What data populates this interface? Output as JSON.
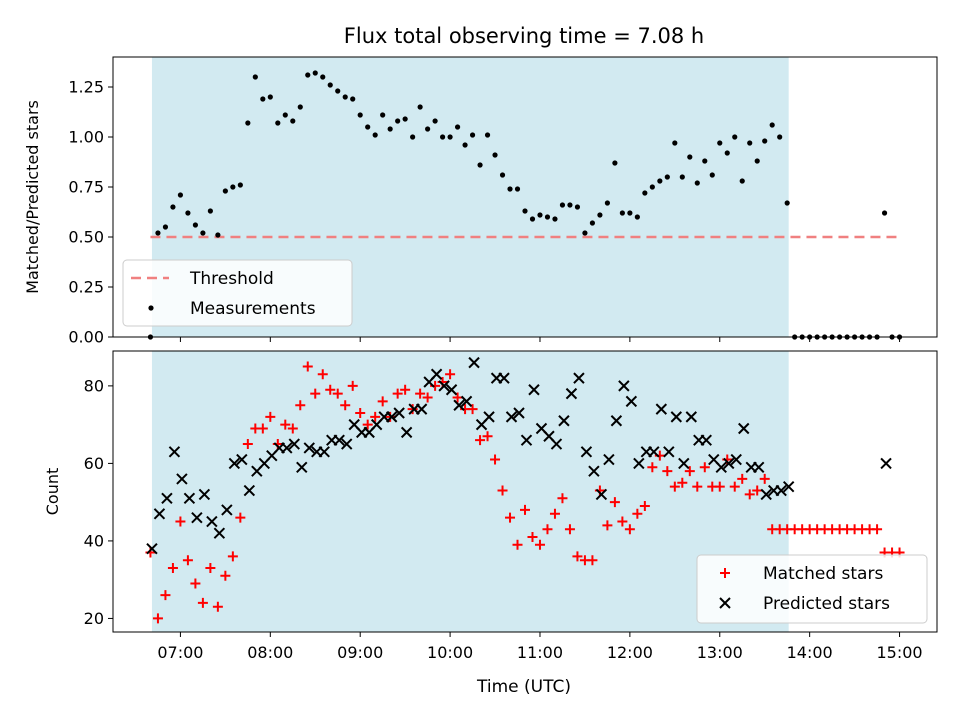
{
  "chart_data": [
    {
      "type": "scatter",
      "title": "Flux total observing time = 7.08 h",
      "xlabel": "",
      "ylabel": "Matched/Predicted stars",
      "xlim": [
        "06:15",
        "15:25"
      ],
      "ylim": [
        0,
        1.4
      ],
      "xticks": [
        "07:00",
        "08:00",
        "09:00",
        "10:00",
        "11:00",
        "12:00",
        "13:00",
        "14:00",
        "15:00"
      ],
      "yticks": [
        "0.00",
        "0.25",
        "0.50",
        "0.75",
        "1.00",
        "1.25"
      ],
      "observing_window": [
        "06:41",
        "13:46"
      ],
      "threshold": {
        "name": "Threshold",
        "value": 0.5,
        "x": [
          "06:40",
          "15:00"
        ],
        "color": "#f08080"
      },
      "legend": {
        "position": "lower-left",
        "entries": [
          "Threshold",
          "Measurements"
        ]
      },
      "series": [
        {
          "name": "Measurements",
          "color": "#000000",
          "marker": "dot",
          "x": [
            "06:40",
            "06:45",
            "06:50",
            "06:55",
            "07:00",
            "07:05",
            "07:10",
            "07:15",
            "07:20",
            "07:25",
            "07:30",
            "07:35",
            "07:40",
            "07:45",
            "07:50",
            "07:55",
            "08:00",
            "08:05",
            "08:10",
            "08:15",
            "08:20",
            "08:25",
            "08:30",
            "08:35",
            "08:40",
            "08:45",
            "08:50",
            "08:55",
            "09:00",
            "09:05",
            "09:10",
            "09:15",
            "09:20",
            "09:25",
            "09:30",
            "09:35",
            "09:40",
            "09:45",
            "09:50",
            "09:55",
            "10:00",
            "10:05",
            "10:10",
            "10:15",
            "10:20",
            "10:25",
            "10:30",
            "10:35",
            "10:40",
            "10:45",
            "10:50",
            "10:55",
            "11:00",
            "11:05",
            "11:10",
            "11:15",
            "11:20",
            "11:25",
            "11:30",
            "11:35",
            "11:40",
            "11:45",
            "11:50",
            "11:55",
            "12:00",
            "12:05",
            "12:10",
            "12:15",
            "12:20",
            "12:25",
            "12:30",
            "12:35",
            "12:40",
            "12:45",
            "12:50",
            "12:55",
            "13:00",
            "13:05",
            "13:10",
            "13:15",
            "13:20",
            "13:25",
            "13:30",
            "13:35",
            "13:40",
            "13:45",
            "13:50",
            "13:55",
            "14:00",
            "14:05",
            "14:10",
            "14:15",
            "14:20",
            "14:25",
            "14:30",
            "14:35",
            "14:40",
            "14:45",
            "14:50",
            "14:55",
            "15:00"
          ],
          "y": [
            0.0,
            0.52,
            0.55,
            0.65,
            0.71,
            0.62,
            0.56,
            0.52,
            0.63,
            0.51,
            0.73,
            0.75,
            0.76,
            1.07,
            1.3,
            1.19,
            1.2,
            1.07,
            1.11,
            1.08,
            1.15,
            1.31,
            1.32,
            1.3,
            1.26,
            1.23,
            1.2,
            1.19,
            1.11,
            1.05,
            1.01,
            1.11,
            1.04,
            1.08,
            1.09,
            1.0,
            1.15,
            1.04,
            1.08,
            1.0,
            1.0,
            1.05,
            0.96,
            1.01,
            0.86,
            1.01,
            0.91,
            0.81,
            0.74,
            0.74,
            0.63,
            0.59,
            0.61,
            0.6,
            0.59,
            0.66,
            0.66,
            0.65,
            0.52,
            0.57,
            0.61,
            0.67,
            0.87,
            0.62,
            0.62,
            0.6,
            0.72,
            0.75,
            0.78,
            0.8,
            0.97,
            0.8,
            0.9,
            0.77,
            0.88,
            0.81,
            0.97,
            0.92,
            1.0,
            0.78,
            0.97,
            0.88,
            0.98,
            1.06,
            1.0,
            0.67,
            0.0,
            0.0,
            0.0,
            0.0,
            0.0,
            0.0,
            0.0,
            0.0,
            0.0,
            0.0,
            0.0,
            0.0,
            0.62,
            0.0,
            0.0
          ]
        }
      ]
    },
    {
      "type": "scatter",
      "title": "",
      "xlabel": "Time (UTC)",
      "ylabel": "Count",
      "xlim": [
        "06:15",
        "15:25"
      ],
      "ylim": [
        16.5,
        89
      ],
      "xticks": [
        "07:00",
        "08:00",
        "09:00",
        "10:00",
        "11:00",
        "12:00",
        "13:00",
        "14:00",
        "15:00"
      ],
      "yticks": [
        "20",
        "40",
        "60",
        "80"
      ],
      "observing_window": [
        "06:41",
        "13:46"
      ],
      "legend": {
        "position": "lower-right",
        "entries": [
          "Matched stars",
          "Predicted stars"
        ]
      },
      "series": [
        {
          "name": "Matched stars",
          "color": "#ff0000",
          "marker": "plus",
          "x": [
            "06:40",
            "06:45",
            "06:50",
            "06:55",
            "07:00",
            "07:05",
            "07:10",
            "07:15",
            "07:20",
            "07:25",
            "07:30",
            "07:35",
            "07:40",
            "07:45",
            "07:50",
            "07:55",
            "08:00",
            "08:05",
            "08:10",
            "08:15",
            "08:20",
            "08:25",
            "08:30",
            "08:35",
            "08:40",
            "08:45",
            "08:50",
            "08:55",
            "09:00",
            "09:05",
            "09:10",
            "09:15",
            "09:20",
            "09:25",
            "09:30",
            "09:35",
            "09:40",
            "09:45",
            "09:50",
            "09:55",
            "10:00",
            "10:05",
            "10:10",
            "10:15",
            "10:20",
            "10:25",
            "10:30",
            "10:35",
            "10:40",
            "10:45",
            "10:50",
            "10:55",
            "11:00",
            "11:05",
            "11:10",
            "11:15",
            "11:20",
            "11:25",
            "11:30",
            "11:35",
            "11:40",
            "11:45",
            "11:50",
            "11:55",
            "12:00",
            "12:05",
            "12:10",
            "12:15",
            "12:20",
            "12:25",
            "12:30",
            "12:35",
            "12:40",
            "12:45",
            "12:50",
            "12:55",
            "13:00",
            "13:05",
            "13:10",
            "13:15",
            "13:20",
            "13:25",
            "13:30",
            "13:35",
            "13:40",
            "13:45",
            "13:50",
            "13:55",
            "14:00",
            "14:05",
            "14:10",
            "14:15",
            "14:20",
            "14:25",
            "14:30",
            "14:35",
            "14:40",
            "14:45",
            "14:50",
            "14:55",
            "15:00"
          ],
          "y": [
            37,
            20,
            26,
            33,
            45,
            35,
            29,
            24,
            33,
            23,
            31,
            36,
            46,
            65,
            69,
            69,
            72,
            65,
            70,
            69,
            75,
            85,
            78,
            83,
            79,
            78,
            75,
            80,
            73,
            70,
            72,
            76,
            72,
            78,
            79,
            74,
            78,
            77,
            80,
            81,
            83,
            77,
            74,
            74,
            66,
            67,
            61,
            53,
            46,
            39,
            48,
            41,
            39,
            43,
            47,
            51,
            43,
            36,
            35,
            35,
            53,
            44,
            50,
            45,
            43,
            47,
            49,
            59,
            62,
            58,
            54,
            55,
            58,
            54,
            59,
            54,
            54,
            61,
            54,
            56,
            52,
            53,
            56,
            43,
            43,
            43,
            43,
            43,
            43,
            43,
            43,
            43,
            43,
            43,
            43,
            43,
            43,
            43,
            37,
            37,
            37
          ]
        },
        {
          "name": "Predicted stars",
          "color": "#000000",
          "marker": "x",
          "x": [
            "06:41",
            "06:46",
            "06:51",
            "06:56",
            "07:01",
            "07:06",
            "07:11",
            "07:16",
            "07:21",
            "07:26",
            "07:31",
            "07:36",
            "07:41",
            "07:46",
            "07:51",
            "07:56",
            "08:01",
            "08:06",
            "08:11",
            "08:16",
            "08:21",
            "08:26",
            "08:31",
            "08:36",
            "08:41",
            "08:46",
            "08:51",
            "08:56",
            "09:01",
            "09:06",
            "09:11",
            "09:16",
            "09:21",
            "09:26",
            "09:31",
            "09:36",
            "09:41",
            "09:46",
            "09:51",
            "09:56",
            "10:01",
            "10:06",
            "10:11",
            "10:16",
            "10:21",
            "10:26",
            "10:31",
            "10:36",
            "10:41",
            "10:46",
            "10:51",
            "10:56",
            "11:01",
            "11:06",
            "11:11",
            "11:16",
            "11:21",
            "11:26",
            "11:31",
            "11:36",
            "11:41",
            "11:46",
            "11:51",
            "11:56",
            "12:01",
            "12:06",
            "12:11",
            "12:16",
            "12:21",
            "12:26",
            "12:31",
            "12:36",
            "12:41",
            "12:46",
            "12:51",
            "12:56",
            "13:01",
            "13:06",
            "13:11",
            "13:16",
            "13:21",
            "13:26",
            "13:31",
            "13:36",
            "13:41",
            "13:46",
            "14:51"
          ],
          "y": [
            38,
            47,
            51,
            63,
            56,
            51,
            46,
            52,
            45,
            42,
            48,
            60,
            61,
            53,
            58,
            60,
            62,
            64,
            64,
            65,
            59,
            64,
            63,
            63,
            66,
            66,
            65,
            70,
            68,
            68,
            70,
            72,
            72,
            73,
            68,
            74,
            74,
            81,
            83,
            80,
            79,
            75,
            76,
            86,
            70,
            72,
            82,
            82,
            72,
            73,
            66,
            79,
            69,
            67,
            65,
            71,
            78,
            82,
            63,
            58,
            52,
            61,
            71,
            80,
            76,
            60,
            63,
            63,
            74,
            63,
            72,
            60,
            72,
            66,
            66,
            61,
            59,
            60,
            61,
            69,
            59,
            59,
            52,
            53,
            53,
            54,
            60
          ]
        }
      ]
    }
  ]
}
